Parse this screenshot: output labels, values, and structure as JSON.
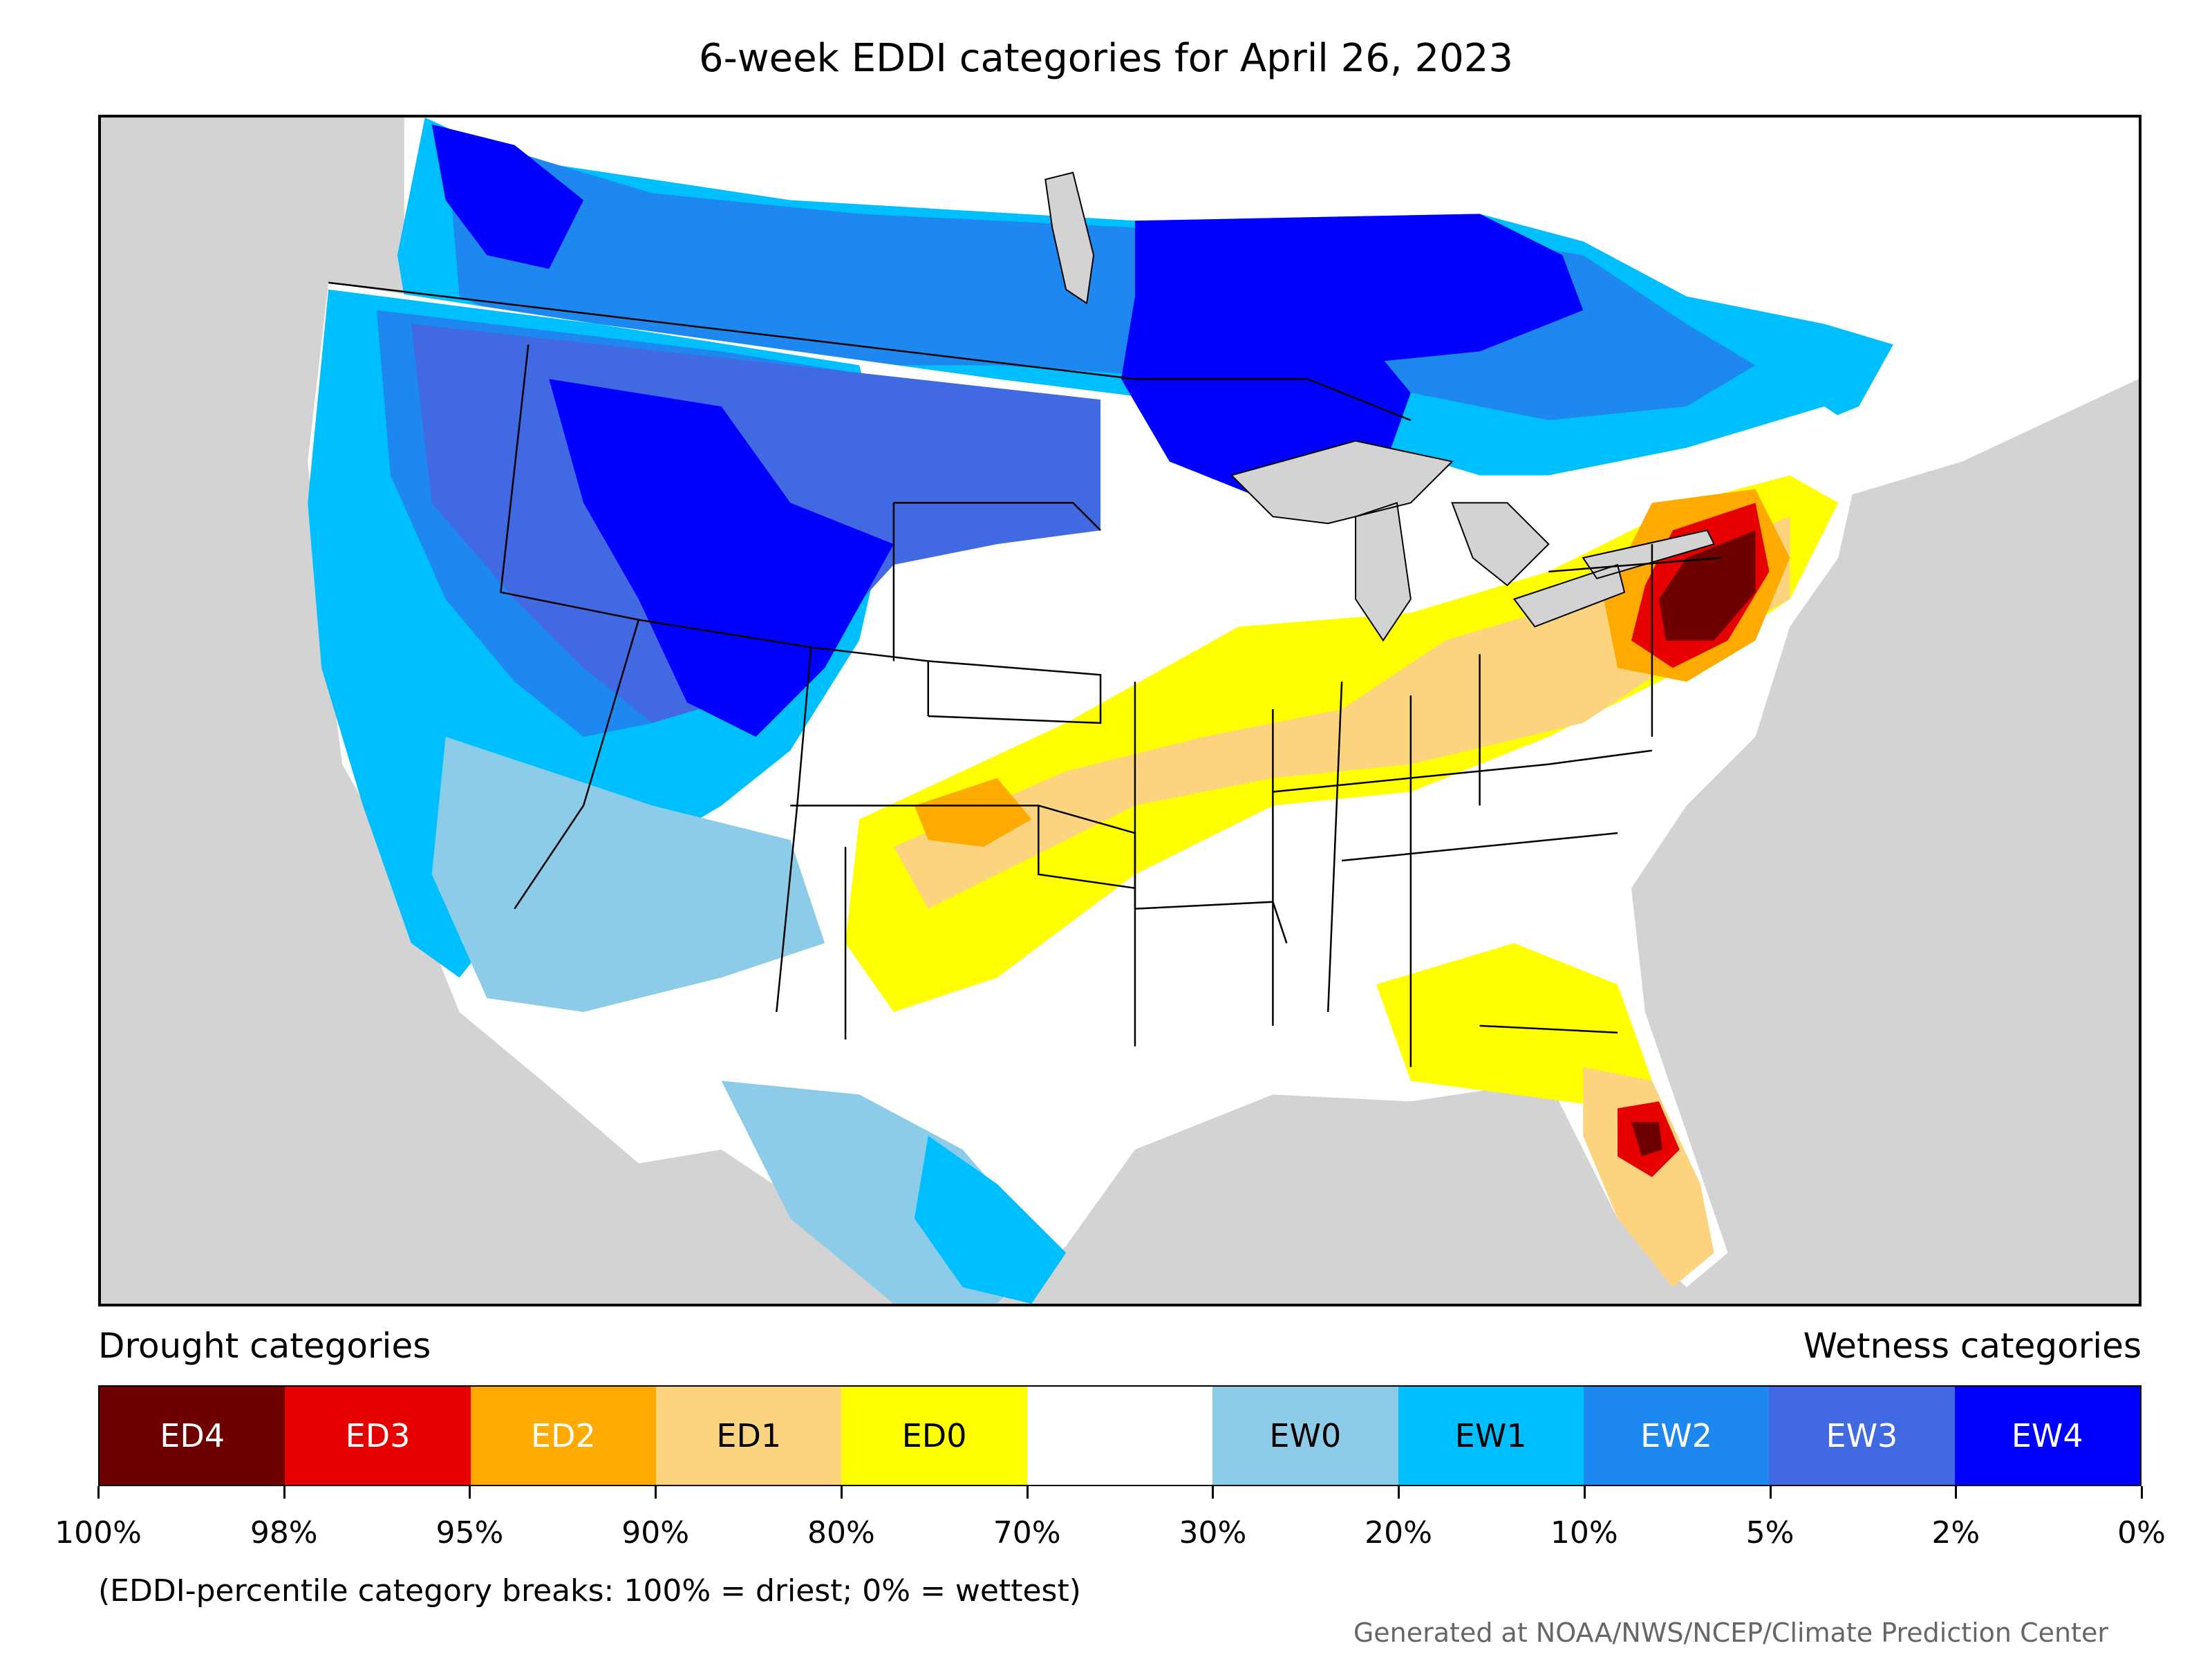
{
  "title": "6-week EDDI categories for April 26, 2023",
  "legend": {
    "drought_label": "Drought categories",
    "wetness_label": "Wetness categories",
    "categories": [
      {
        "label": "ED4",
        "color": "#6e0000",
        "text_color": "#ffffff"
      },
      {
        "label": "ED3",
        "color": "#e60000",
        "text_color": "#ffffff"
      },
      {
        "label": "ED2",
        "color": "#ffaa00",
        "text_color": "#ffffff"
      },
      {
        "label": "ED1",
        "color": "#fcd37f",
        "text_color": "#000000"
      },
      {
        "label": "ED0",
        "color": "#ffff00",
        "text_color": "#000000"
      },
      {
        "label": "",
        "color": "#ffffff",
        "text_color": "#000000"
      },
      {
        "label": "EW0",
        "color": "#8ccce9",
        "text_color": "#000000"
      },
      {
        "label": "EW1",
        "color": "#00bfff",
        "text_color": "#000000"
      },
      {
        "label": "EW2",
        "color": "#1e88f0",
        "text_color": "#ffffff"
      },
      {
        "label": "EW3",
        "color": "#4169e1",
        "text_color": "#ffffff"
      },
      {
        "label": "EW4",
        "color": "#0000ff",
        "text_color": "#ffffff"
      }
    ],
    "ticks": [
      "100%",
      "98%",
      "95%",
      "90%",
      "80%",
      "70%",
      "30%",
      "20%",
      "10%",
      "5%",
      "2%",
      "0%"
    ]
  },
  "note": "(EDDI-percentile category breaks: 100% = driest; 0% = wettest)",
  "credit": "Generated at NOAA/NWS/NCEP/Climate Prediction Center",
  "map": {
    "background_color": "#d3d3d3",
    "regions": [
      {
        "category": "EW4",
        "area": "Northern Rockies / Idaho / Wyoming"
      },
      {
        "category": "EW4",
        "area": "Northern Minnesota / Ontario"
      },
      {
        "category": "EW3",
        "area": "Northern Plains / Dakotas"
      },
      {
        "category": "EW2",
        "area": "Pacific Northwest / Canadian Prairies"
      },
      {
        "category": "EW1",
        "area": "California / Great Basin"
      },
      {
        "category": "EW0",
        "area": "Southwest / South Texas"
      },
      {
        "category": "ED0",
        "area": "Central Plains / Midwest"
      },
      {
        "category": "ED1",
        "area": "Kansas / Missouri / Ohio Valley"
      },
      {
        "category": "ED2",
        "area": "Oklahoma Panhandle / Mid-Atlantic"
      },
      {
        "category": "ED3",
        "area": "Delaware / Maryland / Florida"
      },
      {
        "category": "ED4",
        "area": "Virginia / Maryland / Central Florida"
      }
    ]
  }
}
